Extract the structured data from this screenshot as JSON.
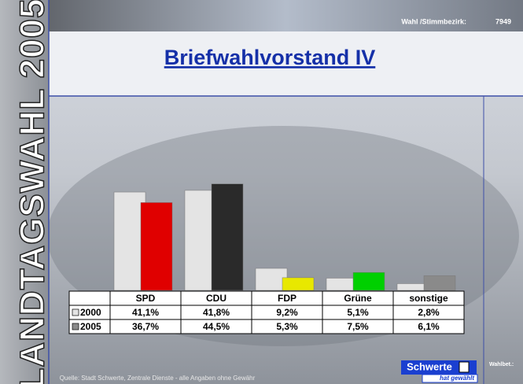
{
  "chart_data": {
    "type": "bar",
    "title": "Briefwahlvorstand IV",
    "categories": [
      "SPD",
      "CDU",
      "FDP",
      "Grüne",
      "sonstige"
    ],
    "series": [
      {
        "name": "2000",
        "color": "#e4e4e4",
        "values": [
          41.1,
          41.8,
          9.2,
          5.1,
          2.8
        ],
        "value_labels": [
          "41,1%",
          "41,8%",
          "9,2%",
          "5,1%",
          "2,8%"
        ]
      },
      {
        "name": "2005",
        "colors": [
          "#e00000",
          "#2a2a2a",
          "#e8e800",
          "#00d000",
          "#8a8a8a"
        ],
        "values": [
          36.7,
          44.5,
          5.3,
          7.5,
          6.1
        ],
        "value_labels": [
          "36,7%",
          "44,5%",
          "5,3%",
          "7,5%",
          "6,1%"
        ]
      }
    ]
  },
  "slide": {
    "side_title": "LANDTAGSWAHL 2005",
    "district_label": "Wahl /Stimmbezirk:",
    "district_number": "7949",
    "logo": "Schwerte",
    "logo_sub": "hat gewählt",
    "turnout_label": "Wahlbet.:",
    "source": "Quelle: Stadt Schwerte, Zentrale Dienste - alle Angaben ohne Gewähr"
  }
}
